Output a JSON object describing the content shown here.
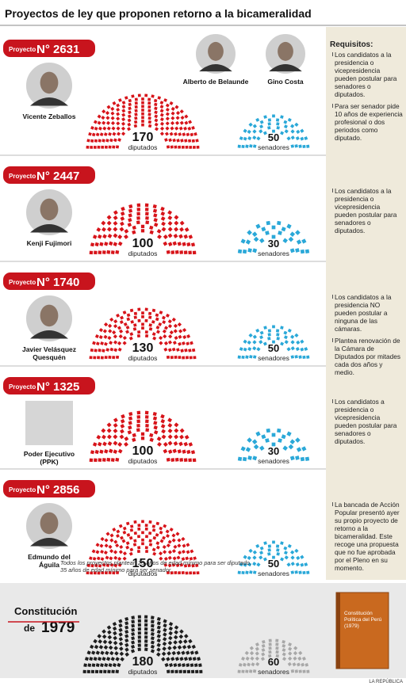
{
  "title": "Proyectos de ley que proponen retorno a la bicameralidad",
  "labels": {
    "tag": "Proyecto",
    "diputados": "diputados",
    "senadores": "senadores"
  },
  "projects": [
    {
      "number": "N° 2631",
      "people": [
        {
          "lines": [
            "Vicente Zeballos"
          ]
        },
        {
          "lines": [
            "Alberto de Belaunde"
          ]
        },
        {
          "lines": [
            "Gino Costa"
          ]
        }
      ],
      "diputados": 170,
      "senadores": 50,
      "notes_heading": "Requisitos:",
      "notes": [
        "Los candidatos a la presidencia o vicepresidencia pueden postular para senadores o diputados.",
        "Para ser senador pide 10 años de experiencia profesional o dos periodos como diputado."
      ]
    },
    {
      "number": "N° 2447",
      "people": [
        {
          "lines": [
            "Kenji Fujimori"
          ]
        }
      ],
      "diputados": 100,
      "senadores": 30,
      "notes": [
        "Los candidatos a la presidencia o vicepresidencia pueden postular para senadores o diputados."
      ]
    },
    {
      "number": "N° 1740",
      "people": [
        {
          "lines": [
            "Javier Velásquez",
            "Quesquén"
          ]
        }
      ],
      "diputados": 130,
      "senadores": 50,
      "notes": [
        "Los candidatos a la presidencia NO pueden postular a ninguna de las cámaras.",
        "Plantea renovación de la Cámara de Diputados por mitades cada dos años y medio."
      ]
    },
    {
      "number": "N° 1325",
      "people": [
        {
          "lines": [
            "Poder Ejecutivo",
            "(PPK)"
          ]
        }
      ],
      "diputados": 100,
      "senadores": 30,
      "notes": [
        "Los candidatos a presidencia o vicepresidencia pueden postular para senadores o diputados."
      ]
    },
    {
      "number": "N° 2856",
      "people": [
        {
          "lines": [
            "Edmundo del",
            "Águila"
          ]
        }
      ],
      "diputados": 150,
      "senadores": 50,
      "notes": [
        "La bancada de Acción Popular presentó ayer su propio proyecto de retorno a la bicameralidad. Este recoge una propuesta que no fue aprobada por el Pleno en su momento."
      ]
    }
  ],
  "footnote": [
    "Todos los proyectos plantean 25 años de edad mínimo para ser diputado,",
    "35 años de edad mínimo para ser senador."
  ],
  "constitution": {
    "line1": "Constitución",
    "prefix": "de",
    "year": "1979",
    "diputados": 180,
    "senadores": 60,
    "book": [
      "Constitución",
      "Política del Perú",
      "(1979)"
    ]
  },
  "credit": "LA REPÚBLICA"
}
